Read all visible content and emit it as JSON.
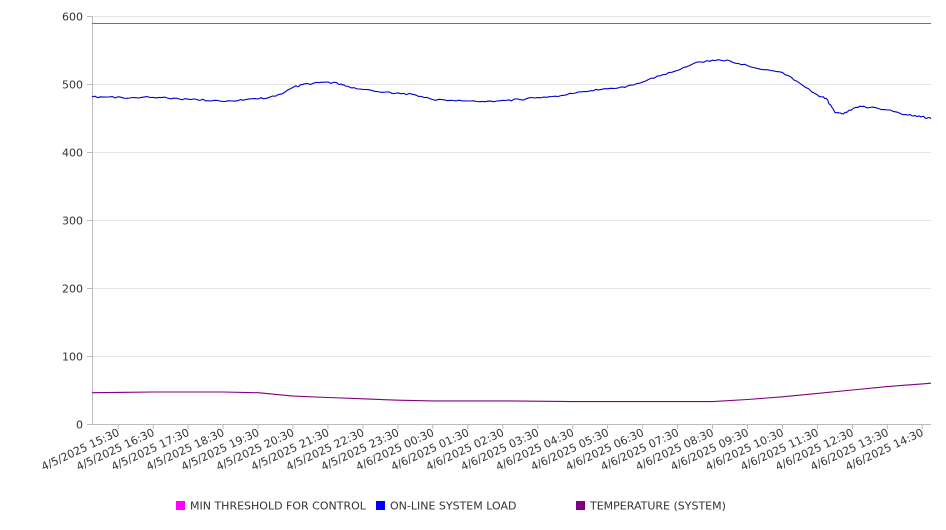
{
  "chart_data": {
    "type": "line",
    "title": "",
    "xlabel": "",
    "ylabel": "",
    "ylim": [
      0,
      600
    ],
    "y_ticks": [
      0,
      100,
      200,
      300,
      400,
      500,
      600
    ],
    "x_range": [
      "4/5/2025 14:45",
      "4/6/2025 14:45"
    ],
    "x_tick_labels": [
      "4/5/2025 15:30",
      "4/5/2025 16:30",
      "4/5/2025 17:30",
      "4/5/2025 18:30",
      "4/5/2025 19:30",
      "4/5/2025 20:30",
      "4/5/2025 21:30",
      "4/5/2025 22:30",
      "4/5/2025 23:30",
      "4/6/2025 00:30",
      "4/6/2025 01:30",
      "4/6/2025 02:30",
      "4/6/2025 03:30",
      "4/6/2025 04:30",
      "4/6/2025 05:30",
      "4/6/2025 06:30",
      "4/6/2025 07:30",
      "4/6/2025 08:30",
      "4/6/2025 09:30",
      "4/6/2025 10:30",
      "4/6/2025 11:30",
      "4/6/2025 12:30",
      "4/6/2025 13:30",
      "4/6/2025 14:30"
    ],
    "grid": true,
    "legend_position": "bottom",
    "series": [
      {
        "name": "MIN THRESHOLD FOR CONTROL",
        "color": "#ff00ff",
        "legend_color": "#ff00ff",
        "line_color": "#cc33cc",
        "points": [
          [
            "4/5/2025 14:45",
            589
          ],
          [
            "4/6/2025 14:45",
            589
          ]
        ]
      },
      {
        "name": "ON-LINE SYSTEM LOAD",
        "color": "#0000cc",
        "legend_color": "#0000ff",
        "line_color": "#0000cc",
        "points": [
          [
            "4/5/2025 14:45",
            481
          ],
          [
            "4/5/2025 15:15",
            481
          ],
          [
            "4/5/2025 15:45",
            479
          ],
          [
            "4/5/2025 16:15",
            481
          ],
          [
            "4/5/2025 16:45",
            480
          ],
          [
            "4/5/2025 17:15",
            478
          ],
          [
            "4/5/2025 17:45",
            477
          ],
          [
            "4/5/2025 18:15",
            476
          ],
          [
            "4/5/2025 18:45",
            475
          ],
          [
            "4/5/2025 19:00",
            477
          ],
          [
            "4/5/2025 19:30",
            478
          ],
          [
            "4/5/2025 20:00",
            482
          ],
          [
            "4/5/2025 20:30",
            495
          ],
          [
            "4/5/2025 20:45",
            499
          ],
          [
            "4/5/2025 21:15",
            502
          ],
          [
            "4/5/2025 21:45",
            502
          ],
          [
            "4/5/2025 22:00",
            497
          ],
          [
            "4/5/2025 22:30",
            492
          ],
          [
            "4/5/2025 23:00",
            488
          ],
          [
            "4/5/2025 23:30",
            487
          ],
          [
            "4/6/2025 00:00",
            484
          ],
          [
            "4/6/2025 00:30",
            477
          ],
          [
            "4/6/2025 01:00",
            476
          ],
          [
            "4/6/2025 01:30",
            475
          ],
          [
            "4/6/2025 02:00",
            474
          ],
          [
            "4/6/2025 02:30",
            476
          ],
          [
            "4/6/2025 03:00",
            477
          ],
          [
            "4/6/2025 03:30",
            480
          ],
          [
            "4/6/2025 04:00",
            482
          ],
          [
            "4/6/2025 04:30",
            486
          ],
          [
            "4/6/2025 05:00",
            490
          ],
          [
            "4/6/2025 05:30",
            493
          ],
          [
            "4/6/2025 06:00",
            495
          ],
          [
            "4/6/2025 06:30",
            503
          ],
          [
            "4/6/2025 07:00",
            512
          ],
          [
            "4/6/2025 07:30",
            520
          ],
          [
            "4/6/2025 08:00",
            531
          ],
          [
            "4/6/2025 08:30",
            535
          ],
          [
            "4/6/2025 09:00",
            534
          ],
          [
            "4/6/2025 09:30",
            527
          ],
          [
            "4/6/2025 10:00",
            521
          ],
          [
            "4/6/2025 10:30",
            517
          ],
          [
            "4/6/2025 11:00",
            501
          ],
          [
            "4/6/2025 11:30",
            484
          ],
          [
            "4/6/2025 11:45",
            479
          ],
          [
            "4/6/2025 12:00",
            458
          ],
          [
            "4/6/2025 12:15",
            456
          ],
          [
            "4/6/2025 12:30",
            463
          ],
          [
            "4/6/2025 12:45",
            467
          ],
          [
            "4/6/2025 13:15",
            464
          ],
          [
            "4/6/2025 13:45",
            459
          ],
          [
            "4/6/2025 14:00",
            455
          ],
          [
            "4/6/2025 14:15",
            453
          ],
          [
            "4/6/2025 14:30",
            452
          ],
          [
            "4/6/2025 14:45",
            449
          ]
        ]
      },
      {
        "name": "TEMPERATURE (SYSTEM)",
        "color": "#800080",
        "legend_color": "#800080",
        "line_color": "#800080",
        "points": [
          [
            "4/5/2025 14:45",
            46
          ],
          [
            "4/5/2025 16:30",
            47
          ],
          [
            "4/5/2025 18:30",
            47
          ],
          [
            "4/5/2025 19:30",
            46
          ],
          [
            "4/5/2025 20:30",
            41
          ],
          [
            "4/5/2025 21:30",
            39
          ],
          [
            "4/5/2025 22:30",
            37
          ],
          [
            "4/5/2025 23:30",
            35
          ],
          [
            "4/6/2025 00:30",
            34
          ],
          [
            "4/6/2025 02:30",
            34
          ],
          [
            "4/6/2025 04:30",
            33
          ],
          [
            "4/6/2025 06:30",
            33
          ],
          [
            "4/6/2025 08:30",
            33
          ],
          [
            "4/6/2025 09:30",
            36
          ],
          [
            "4/6/2025 10:30",
            40
          ],
          [
            "4/6/2025 11:30",
            45
          ],
          [
            "4/6/2025 12:30",
            50
          ],
          [
            "4/6/2025 13:30",
            55
          ],
          [
            "4/6/2025 14:00",
            57
          ],
          [
            "4/6/2025 14:15",
            58
          ],
          [
            "4/6/2025 14:30",
            59
          ],
          [
            "4/6/2025 14:45",
            60
          ]
        ]
      }
    ]
  }
}
